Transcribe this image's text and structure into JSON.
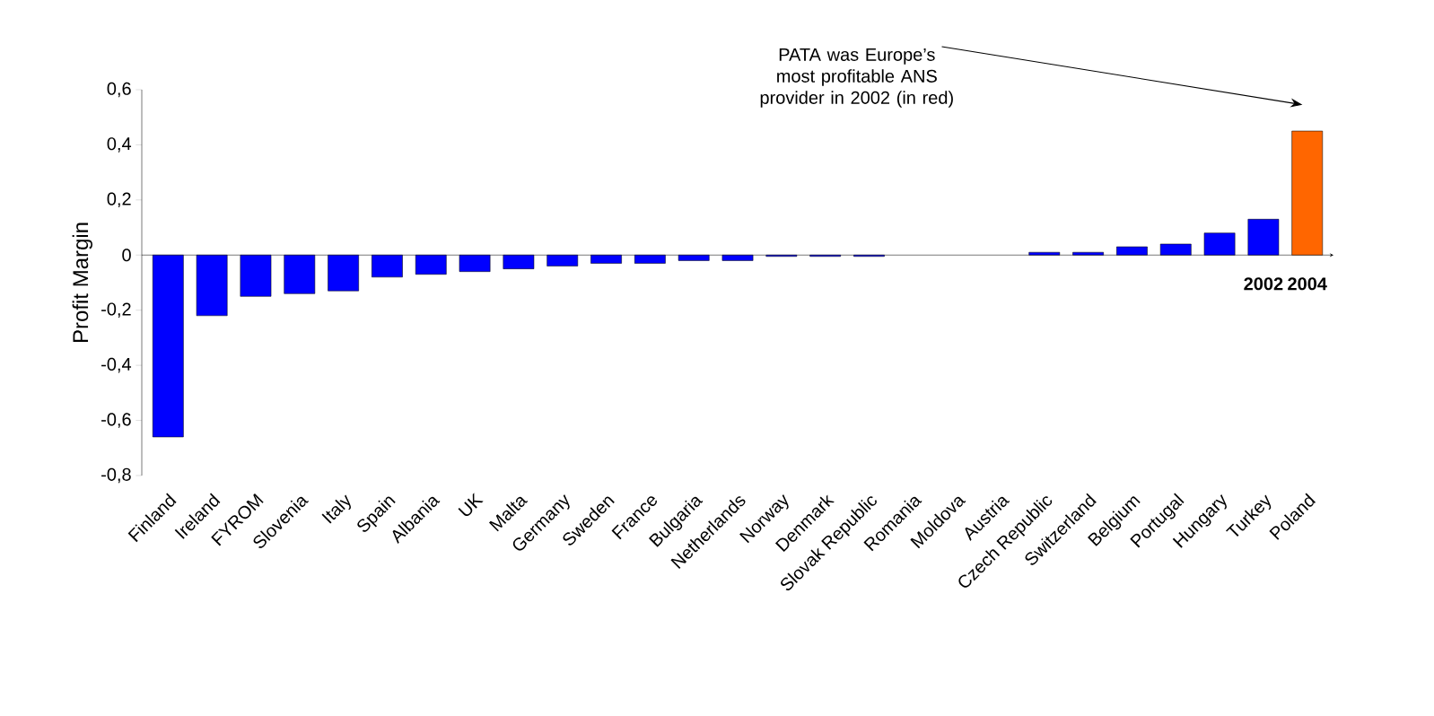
{
  "chart_data": {
    "type": "bar",
    "ylabel": "Profit Margin",
    "categories": [
      "Finland",
      "Ireland",
      "FYROM",
      "Slovenia",
      "Italy",
      "Spain",
      "Albania",
      "UK",
      "Malta",
      "Germany",
      "Sweden",
      "France",
      "Bulgaria",
      "Netherlands",
      "Norway",
      "Denmark",
      "Slovak Republic",
      "Romania",
      "Moldova",
      "Austria",
      "Czech Republic",
      "Switzerland",
      "Belgium",
      "Portugal",
      "Hungary",
      "Turkey",
      "Poland"
    ],
    "values": [
      -0.66,
      -0.22,
      -0.15,
      -0.14,
      -0.13,
      -0.08,
      -0.07,
      -0.06,
      -0.05,
      -0.04,
      -0.03,
      -0.03,
      -0.02,
      -0.02,
      -0.005,
      -0.005,
      -0.005,
      0,
      0,
      0,
      0.01,
      0.01,
      0.03,
      0.04,
      0.08,
      0.13,
      0.45
    ],
    "colors": [
      "#0000ff",
      "#0000ff",
      "#0000ff",
      "#0000ff",
      "#0000ff",
      "#0000ff",
      "#0000ff",
      "#0000ff",
      "#0000ff",
      "#0000ff",
      "#0000ff",
      "#0000ff",
      "#0000ff",
      "#0000ff",
      "#0000ff",
      "#0000ff",
      "#0000ff",
      "#0000ff",
      "#0000ff",
      "#0000ff",
      "#0000ff",
      "#0000ff",
      "#0000ff",
      "#0000ff",
      "#0000ff",
      "#0000ff",
      "#ff6600"
    ],
    "ylim": [
      -0.8,
      0.6
    ],
    "yticks": [
      {
        "value": -0.8,
        "label": "-0,8"
      },
      {
        "value": -0.6,
        "label": "-0,6"
      },
      {
        "value": -0.4,
        "label": "-0,4"
      },
      {
        "value": -0.2,
        "label": "-0,2"
      },
      {
        "value": 0,
        "label": "0"
      },
      {
        "value": 0.2,
        "label": "0,2"
      },
      {
        "value": 0.4,
        "label": "0,4"
      },
      {
        "value": 0.6,
        "label": "0,6"
      }
    ],
    "annotations": [
      "PATA was Europe’s most profitable ANS provider in 2002 (in red)",
      "**2002**",
      "**2004**"
    ]
  }
}
